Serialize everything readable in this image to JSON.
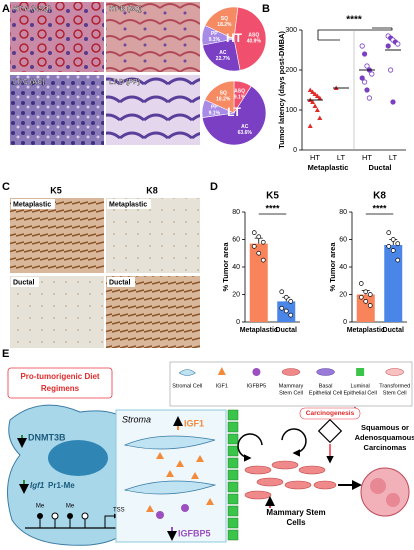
{
  "panel_labels": [
    "A",
    "B",
    "C",
    "D",
    "E"
  ],
  "panel_a": {
    "images": [
      "HT-A (ASQ)",
      "HT-B (SQ)",
      "LT-C (AC)",
      "LT-D (PP)"
    ]
  },
  "panel_c": {
    "columns": [
      "K5",
      "K8"
    ],
    "rows": [
      "Metaplastic",
      "Ductal"
    ]
  },
  "chart_data": [
    {
      "type": "pie",
      "center_label": "HT",
      "categories": [
        "SQ",
        "ASQ",
        "AC",
        "PP"
      ],
      "values": [
        18.2,
        40.9,
        22.7,
        9.1
      ],
      "value_labels": [
        "18.2%",
        "40.9%",
        "22.7%",
        "9.1%"
      ],
      "colors": [
        "#f58a63",
        "#f0506e",
        "#7b3fc4",
        "#a88be6"
      ]
    },
    {
      "type": "pie",
      "center_label": "LT",
      "categories": [
        "ASQ",
        "AC",
        "PP",
        "SQ"
      ],
      "values": [
        9.1,
        63.6,
        9.1,
        18.2
      ],
      "value_labels": [
        "9.1%",
        "63.6%",
        "9.1%",
        "18.2%"
      ],
      "colors": [
        "#f0506e",
        "#7b3fc4",
        "#a88be6",
        "#f58a63"
      ]
    },
    {
      "type": "strip",
      "title": "****",
      "ylabel": "Tumor latency (days post-DMBA)",
      "categories": [
        "HT",
        "LT",
        "HT",
        "LT"
      ],
      "groups": [
        "Metaplastic",
        "Ductal"
      ],
      "values": [
        [
          150,
          145,
          140,
          135,
          130,
          125,
          120,
          110,
          100,
          80,
          60
        ],
        [
          155
        ],
        [
          260,
          240,
          210,
          200,
          190,
          180,
          170,
          150,
          130
        ],
        [
          285,
          280,
          275,
          270,
          265,
          260,
          200,
          120
        ]
      ],
      "means": [
        125,
        155,
        200,
        250
      ],
      "colors": [
        "#e02a2a",
        "#e02a2a",
        "#7b3fc4",
        "#7b3fc4"
      ],
      "markers": [
        "triangle",
        "triangle",
        "circle",
        "circle"
      ],
      "ylim": [
        0,
        300
      ],
      "yticks": [
        0,
        100,
        200,
        300
      ]
    },
    {
      "type": "bar",
      "title": "K5",
      "ylabel": "% Tumor area",
      "annotation": "****",
      "categories": [
        "Metaplastic",
        "Ductal"
      ],
      "values": [
        57,
        15
      ],
      "errors": [
        4,
        3
      ],
      "points": [
        [
          65,
          62,
          58,
          55,
          50,
          45
        ],
        [
          22,
          18,
          15,
          10,
          8,
          5
        ]
      ],
      "colors": [
        "#f9845b",
        "#4a86e8"
      ],
      "ylim": [
        0,
        80
      ],
      "yticks": [
        0,
        20,
        40,
        60,
        80
      ]
    },
    {
      "type": "bar",
      "title": "K8",
      "ylabel": "% Tumor area",
      "annotation": "****",
      "categories": [
        "Metaplastic",
        "Ductal"
      ],
      "values": [
        20,
        56
      ],
      "errors": [
        3,
        4
      ],
      "points": [
        [
          28,
          22,
          20,
          18,
          15,
          12
        ],
        [
          65,
          60,
          57,
          55,
          52,
          45
        ]
      ],
      "colors": [
        "#f9845b",
        "#4a86e8"
      ],
      "ylim": [
        0,
        80
      ],
      "yticks": [
        0,
        20,
        40,
        60,
        80
      ]
    }
  ],
  "panel_e": {
    "legend": [
      {
        "lines": [
          "Stromal Cell"
        ]
      },
      {
        "lines": [
          "IGF1"
        ]
      },
      {
        "lines": [
          "IGFBP5"
        ]
      },
      {
        "lines": [
          "Mammary",
          "Stem Cell"
        ]
      },
      {
        "lines": [
          "Basal",
          "Epithelial Cell"
        ]
      },
      {
        "lines": [
          "Luminal",
          "Epithelial Cell"
        ]
      },
      {
        "lines": [
          "Transformed",
          "Stem Cell"
        ]
      }
    ],
    "diet": [
      "Pro-tumorigenic Diet",
      "Regimens"
    ],
    "dnmt": "DNMT3B",
    "igf_gene": "Igf1",
    "promoter": "Pr1-Me",
    "me": [
      "Me",
      "Me"
    ],
    "tss": "TSS",
    "stroma": "Stroma",
    "igf1": "IGF1",
    "igfbp5": "IGFBP5",
    "stem": [
      "Mammary Stem",
      "Cells"
    ],
    "carcinogenesis": "Carcinogenesis",
    "outcome": [
      "Squamous or",
      "Adenosquamous",
      "Carcinomas"
    ]
  }
}
